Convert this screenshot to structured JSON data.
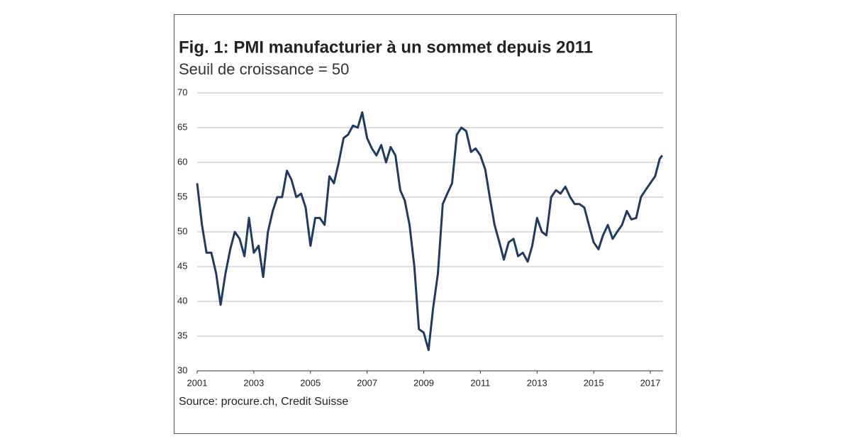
{
  "chart_data": {
    "type": "line",
    "title": "Fig. 1: PMI manufacturier à un sommet depuis 2011",
    "subtitle": "Seuil de croissance = 50",
    "source": "Source: procure.ch, Credit Suisse",
    "x": [
      2001,
      2001.17,
      2001.33,
      2001.5,
      2001.67,
      2001.83,
      2002,
      2002.17,
      2002.33,
      2002.5,
      2002.67,
      2002.83,
      2003,
      2003.17,
      2003.33,
      2003.5,
      2003.67,
      2003.83,
      2004,
      2004.17,
      2004.33,
      2004.5,
      2004.67,
      2004.83,
      2005,
      2005.17,
      2005.33,
      2005.5,
      2005.67,
      2005.83,
      2006,
      2006.17,
      2006.33,
      2006.5,
      2006.67,
      2006.83,
      2007,
      2007.17,
      2007.33,
      2007.5,
      2007.67,
      2007.83,
      2008,
      2008.17,
      2008.33,
      2008.5,
      2008.67,
      2008.83,
      2009,
      2009.17,
      2009.33,
      2009.5,
      2009.67,
      2009.83,
      2010,
      2010.17,
      2010.33,
      2010.5,
      2010.67,
      2010.83,
      2011,
      2011.17,
      2011.33,
      2011.5,
      2011.67,
      2011.83,
      2012,
      2012.17,
      2012.33,
      2012.5,
      2012.67,
      2012.83,
      2013,
      2013.17,
      2013.33,
      2013.5,
      2013.67,
      2013.83,
      2014,
      2014.17,
      2014.33,
      2014.5,
      2014.67,
      2014.83,
      2015,
      2015.17,
      2015.33,
      2015.5,
      2015.67,
      2015.83,
      2016,
      2016.17,
      2016.33,
      2016.5,
      2016.67,
      2016.83,
      2017,
      2017.17,
      2017.33,
      2017.42
    ],
    "series": [
      {
        "name": "PMI",
        "color": "#1f3a63",
        "values": [
          57,
          51,
          47,
          47,
          44,
          39.5,
          44,
          47.5,
          50,
          49,
          46.5,
          52,
          47,
          48,
          43.5,
          50,
          53,
          55,
          55,
          58.8,
          57.5,
          55,
          55.5,
          53.5,
          48,
          52,
          52,
          51,
          58,
          57,
          60,
          63.5,
          64,
          65.3,
          65,
          67.2,
          63.5,
          62,
          61,
          62.5,
          60,
          62.2,
          61,
          56,
          54.5,
          51,
          45,
          36,
          35.5,
          33,
          39,
          44,
          54,
          55.5,
          57,
          64,
          65,
          64.5,
          61.5,
          62,
          61,
          59,
          55,
          51,
          48.5,
          46,
          48.5,
          49,
          46.5,
          47,
          45.7,
          48,
          52,
          50,
          49.5,
          55,
          56,
          55.5,
          56.5,
          55,
          54,
          54,
          53.5,
          51,
          48.5,
          47.5,
          49.5,
          51,
          49,
          50,
          51,
          53,
          51.8,
          52,
          55,
          56,
          57,
          58,
          60.5,
          61
        ]
      }
    ],
    "xlim": [
      2001,
      2017.45
    ],
    "xticks": [
      2001,
      2003,
      2005,
      2007,
      2009,
      2011,
      2013,
      2015,
      2017
    ],
    "ylim": [
      30,
      70
    ],
    "yticks": [
      30,
      35,
      40,
      45,
      50,
      55,
      60,
      65,
      70
    ],
    "grid": true
  }
}
